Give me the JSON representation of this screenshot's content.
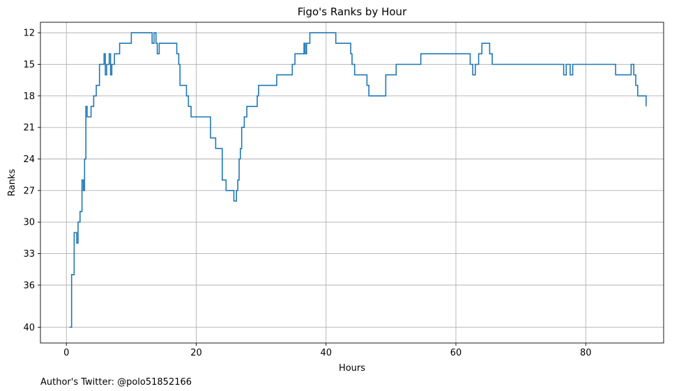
{
  "chart_data": {
    "type": "line",
    "step": true,
    "title": "Figo's Ranks by Hour",
    "xlabel": "Hours",
    "ylabel": "Ranks",
    "xlim": [
      -4,
      92
    ],
    "ylim": [
      41.5,
      11
    ],
    "y_inverted": true,
    "grid": true,
    "x_ticks": [
      0,
      20,
      40,
      60,
      80
    ],
    "y_ticks": [
      12,
      15,
      18,
      21,
      24,
      27,
      30,
      33,
      36,
      40
    ],
    "color": "#1f77b4",
    "series": [
      {
        "x": [
          0.5,
          0.8,
          1.2,
          1.6,
          1.8,
          2.1,
          2.4,
          2.6,
          2.8,
          3.0,
          3.2,
          3.8,
          4.2,
          4.6,
          5.1,
          5.8,
          6.0,
          6.2,
          6.6,
          6.8,
          7.0,
          7.4,
          8.2,
          8.5,
          10.0,
          13.2,
          13.5,
          13.8,
          14.0,
          14.3,
          14.6,
          17.0,
          17.3,
          17.5,
          17.8,
          18.5,
          18.8,
          19.2,
          20.5,
          22.2,
          22.6,
          23.0,
          24.0,
          24.6,
          25.8,
          26.2,
          26.4,
          26.6,
          26.8,
          27.0,
          27.4,
          27.8,
          29.4,
          29.6,
          32.4,
          34.8,
          35.2,
          36.6,
          36.8,
          37.0,
          37.5,
          37.9,
          41.5,
          43.8,
          44.0,
          44.4,
          46.3,
          46.6,
          49.2,
          50.8,
          54.6,
          60.8,
          62.2,
          62.6,
          63.0,
          63.5,
          64.0,
          65.2,
          65.6,
          71.0,
          76.6,
          77.0,
          77.6,
          78.0,
          84.6,
          87.0,
          87.4,
          87.7,
          88.0,
          89.3
        ],
        "y": [
          40,
          35,
          31,
          32,
          30,
          29,
          26,
          27,
          24,
          19,
          20,
          19,
          18,
          17,
          15,
          14,
          16,
          15,
          14,
          16,
          15,
          14,
          13,
          13,
          12,
          13,
          12,
          13,
          14,
          13,
          13,
          14,
          15,
          17,
          17,
          18,
          19,
          20,
          20,
          22,
          22,
          23,
          26,
          27,
          28,
          27,
          26,
          24,
          23,
          21,
          20,
          19,
          18,
          17,
          16,
          15,
          14,
          13,
          14,
          13,
          12,
          12,
          13,
          14,
          15,
          16,
          17,
          18,
          16,
          15,
          14,
          14,
          15,
          16,
          15,
          14,
          13,
          14,
          15,
          15,
          16,
          15,
          16,
          15,
          16,
          15,
          16,
          17,
          18,
          19
        ]
      }
    ]
  },
  "footer": {
    "text": "Author's Twitter: @polo51852166"
  }
}
